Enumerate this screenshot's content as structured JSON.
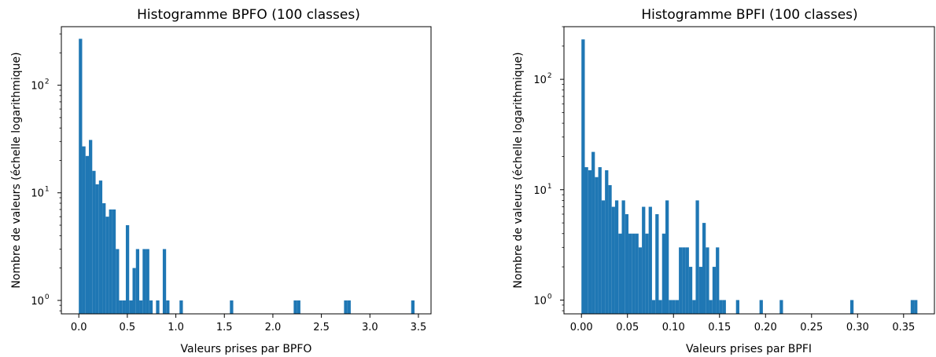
{
  "chart_data": [
    {
      "type": "bar",
      "title": "Histogramme BPFO (100 classes)",
      "xlabel": "Valeurs prises par BPFO",
      "ylabel": "Nombre de valeurs (échelle logarithmique)",
      "yscale": "log",
      "xlim": [
        -0.18,
        3.63
      ],
      "ylim": [
        0.75,
        350
      ],
      "xticks": [
        {
          "value": 0.0,
          "label": "0.0"
        },
        {
          "value": 0.5,
          "label": "0.5"
        },
        {
          "value": 1.0,
          "label": "1.0"
        },
        {
          "value": 1.5,
          "label": "1.5"
        },
        {
          "value": 2.0,
          "label": "2.0"
        },
        {
          "value": 2.5,
          "label": "2.5"
        },
        {
          "value": 3.0,
          "label": "3.0"
        },
        {
          "value": 3.5,
          "label": "3.5"
        }
      ],
      "yticks": [
        {
          "value": 1,
          "base": "10",
          "exp": "0"
        },
        {
          "value": 10,
          "base": "10",
          "exp": "1"
        },
        {
          "value": 100,
          "base": "10",
          "exp": "2"
        }
      ],
      "bin_start": 0.0,
      "bin_width": 0.0346,
      "counts": [
        270,
        27,
        22,
        31,
        16,
        12,
        13,
        8,
        6,
        7,
        7,
        3,
        1,
        1,
        5,
        1,
        2,
        3,
        1,
        3,
        3,
        1,
        0,
        1,
        0,
        3,
        1,
        0,
        0,
        0,
        1,
        0,
        0,
        0,
        0,
        0,
        0,
        0,
        0,
        0,
        0,
        0,
        0,
        0,
        0,
        1,
        0,
        0,
        0,
        0,
        0,
        0,
        0,
        0,
        0,
        0,
        0,
        0,
        0,
        0,
        0,
        0,
        0,
        0,
        1,
        1,
        0,
        0,
        0,
        0,
        0,
        0,
        0,
        0,
        0,
        0,
        0,
        0,
        0,
        1,
        1,
        0,
        0,
        0,
        0,
        0,
        0,
        0,
        0,
        0,
        0,
        0,
        0,
        0,
        0,
        0,
        0,
        0,
        0,
        1
      ],
      "color": "#1f77b4",
      "grid": false,
      "legend": "none"
    },
    {
      "type": "bar",
      "title": "Histogramme BPFI (100 classes)",
      "xlabel": "Valeurs prises par BPFI",
      "ylabel": "Nombre de valeurs (échelle logarithmique)",
      "yscale": "log",
      "xlim": [
        -0.019,
        0.3835
      ],
      "ylim": [
        0.75,
        300
      ],
      "xticks": [
        {
          "value": 0.0,
          "label": "0.00"
        },
        {
          "value": 0.05,
          "label": "0.05"
        },
        {
          "value": 0.1,
          "label": "0.10"
        },
        {
          "value": 0.15,
          "label": "0.15"
        },
        {
          "value": 0.2,
          "label": "0.20"
        },
        {
          "value": 0.25,
          "label": "0.25"
        },
        {
          "value": 0.3,
          "label": "0.30"
        },
        {
          "value": 0.35,
          "label": "0.35"
        }
      ],
      "yticks": [
        {
          "value": 1,
          "base": "10",
          "exp": "0"
        },
        {
          "value": 10,
          "base": "10",
          "exp": "1"
        },
        {
          "value": 100,
          "base": "10",
          "exp": "2"
        }
      ],
      "bin_start": 0.0,
      "bin_width": 0.00365,
      "counts": [
        230,
        16,
        15,
        22,
        13,
        16,
        8,
        15,
        11,
        7,
        8,
        4,
        8,
        6,
        4,
        4,
        4,
        3,
        7,
        4,
        7,
        1,
        6,
        1,
        4,
        8,
        1,
        1,
        1,
        3,
        3,
        3,
        2,
        1,
        8,
        2,
        5,
        3,
        1,
        2,
        3,
        1,
        1,
        0,
        0,
        0,
        1,
        0,
        0,
        0,
        0,
        0,
        0,
        1,
        0,
        0,
        0,
        0,
        0,
        1,
        0,
        0,
        0,
        0,
        0,
        0,
        0,
        0,
        0,
        0,
        0,
        0,
        0,
        0,
        0,
        0,
        0,
        0,
        0,
        0,
        1,
        0,
        0,
        0,
        0,
        0,
        0,
        0,
        0,
        0,
        0,
        0,
        0,
        0,
        0,
        0,
        0,
        0,
        1,
        1
      ],
      "color": "#1f77b4",
      "grid": false,
      "legend": "none"
    }
  ]
}
